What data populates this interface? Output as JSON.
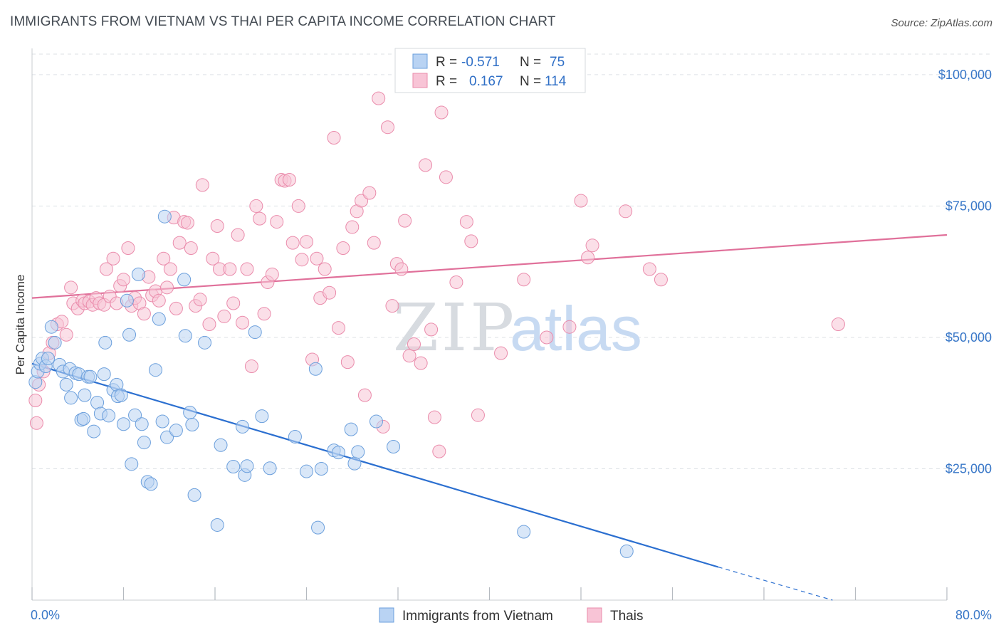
{
  "header": {
    "title": "IMMIGRANTS FROM VIETNAM VS THAI PER CAPITA INCOME CORRELATION CHART",
    "source": "Source: ZipAtlas.com"
  },
  "watermark": {
    "zip": "ZIP",
    "atlas": "atlas"
  },
  "colors": {
    "blue_fill": "#b9d3f3",
    "blue_stroke": "#6b9fdc",
    "blue_line": "#2b6fd0",
    "pink_fill": "#f8c4d6",
    "pink_stroke": "#ea8bab",
    "pink_line": "#e0709a",
    "grid": "#dde1e6",
    "tick_label": "#3a78c8"
  },
  "legend": {
    "rows": [
      {
        "r_label": "R =",
        "r_value": "-0.571",
        "n_label": "N =",
        "n_value": "75"
      },
      {
        "r_label": "R =",
        "r_value": "0.167",
        "n_label": "N =",
        "n_value": "114"
      }
    ]
  },
  "chart_data": {
    "type": "scatter",
    "title": "IMMIGRANTS FROM VIETNAM VS THAI PER CAPITA INCOME CORRELATION CHART",
    "xlabel": "",
    "ylabel": "Per Capita Income",
    "xlim": [
      0,
      80
    ],
    "ylim": [
      0,
      105000
    ],
    "x_tick_labels": [
      "0.0%",
      "80.0%"
    ],
    "y_ticks": [
      {
        "value": 25000,
        "label": "$25,000"
      },
      {
        "value": 50000,
        "label": "$50,000"
      },
      {
        "value": 75000,
        "label": "$75,000"
      },
      {
        "value": 100000,
        "label": "$100,000"
      }
    ],
    "grid": true,
    "legend_position": "top-center",
    "series": [
      {
        "name": "Immigrants from Vietnam",
        "r": -0.571,
        "n": 75,
        "trend": {
          "x": [
            0,
            60
          ],
          "y": [
            45000,
            6300
          ],
          "dashed_to": [
            70,
            0
          ]
        },
        "points": [
          [
            0.3,
            41500
          ],
          [
            0.5,
            43500
          ],
          [
            0.7,
            45000
          ],
          [
            0.9,
            46000
          ],
          [
            1.2,
            44500
          ],
          [
            1.4,
            46000
          ],
          [
            1.7,
            52000
          ],
          [
            2.0,
            49000
          ],
          [
            2.4,
            44800
          ],
          [
            2.7,
            43500
          ],
          [
            3.0,
            41000
          ],
          [
            3.3,
            44000
          ],
          [
            3.4,
            38500
          ],
          [
            3.8,
            43200
          ],
          [
            4.1,
            43000
          ],
          [
            4.3,
            34300
          ],
          [
            4.5,
            34500
          ],
          [
            4.6,
            39000
          ],
          [
            4.9,
            42500
          ],
          [
            5.1,
            42500
          ],
          [
            5.4,
            32100
          ],
          [
            5.7,
            37600
          ],
          [
            6.0,
            35500
          ],
          [
            6.3,
            43000
          ],
          [
            6.4,
            49000
          ],
          [
            6.7,
            35100
          ],
          [
            7.1,
            40000
          ],
          [
            7.4,
            41000
          ],
          [
            7.5,
            38800
          ],
          [
            7.8,
            39000
          ],
          [
            8.0,
            33500
          ],
          [
            8.3,
            57000
          ],
          [
            8.5,
            50500
          ],
          [
            8.7,
            25900
          ],
          [
            9.0,
            35200
          ],
          [
            9.3,
            62000
          ],
          [
            9.6,
            33500
          ],
          [
            9.8,
            30000
          ],
          [
            10.1,
            22500
          ],
          [
            10.4,
            22100
          ],
          [
            10.8,
            43800
          ],
          [
            11.1,
            53500
          ],
          [
            11.4,
            34000
          ],
          [
            11.6,
            73000
          ],
          [
            11.8,
            31000
          ],
          [
            12.6,
            32300
          ],
          [
            13.3,
            61000
          ],
          [
            13.4,
            50300
          ],
          [
            13.8,
            35700
          ],
          [
            14.0,
            33400
          ],
          [
            14.2,
            20000
          ],
          [
            15.1,
            49000
          ],
          [
            16.2,
            14300
          ],
          [
            16.5,
            29500
          ],
          [
            17.6,
            25400
          ],
          [
            18.4,
            33000
          ],
          [
            18.6,
            23800
          ],
          [
            18.8,
            25500
          ],
          [
            19.5,
            51000
          ],
          [
            20.1,
            35000
          ],
          [
            20.8,
            25100
          ],
          [
            23.0,
            31100
          ],
          [
            24.0,
            24500
          ],
          [
            24.8,
            44000
          ],
          [
            25.3,
            25000
          ],
          [
            26.4,
            28500
          ],
          [
            26.8,
            28100
          ],
          [
            27.9,
            32500
          ],
          [
            28.2,
            26000
          ],
          [
            28.5,
            28200
          ],
          [
            30.1,
            34000
          ],
          [
            31.6,
            29200
          ],
          [
            43.0,
            13000
          ],
          [
            52.0,
            9300
          ],
          [
            25.0,
            13800
          ]
        ]
      },
      {
        "name": "Thais",
        "r": 0.167,
        "n": 114,
        "trend": {
          "x": [
            0,
            80
          ],
          "y": [
            57500,
            69500
          ]
        },
        "points": [
          [
            0.3,
            38000
          ],
          [
            0.4,
            33700
          ],
          [
            0.6,
            41000
          ],
          [
            1.0,
            43500
          ],
          [
            1.5,
            47000
          ],
          [
            1.8,
            49000
          ],
          [
            2.2,
            52500
          ],
          [
            2.6,
            53000
          ],
          [
            3.0,
            50500
          ],
          [
            3.4,
            59500
          ],
          [
            3.6,
            56500
          ],
          [
            4.0,
            55500
          ],
          [
            4.4,
            57000
          ],
          [
            4.6,
            56500
          ],
          [
            5.0,
            56800
          ],
          [
            5.3,
            56200
          ],
          [
            5.6,
            57500
          ],
          [
            5.9,
            56500
          ],
          [
            6.3,
            56200
          ],
          [
            6.5,
            63000
          ],
          [
            6.8,
            57800
          ],
          [
            7.1,
            65000
          ],
          [
            7.4,
            56500
          ],
          [
            7.7,
            59800
          ],
          [
            8.0,
            61000
          ],
          [
            8.4,
            67000
          ],
          [
            8.7,
            56000
          ],
          [
            9.0,
            57500
          ],
          [
            9.4,
            56500
          ],
          [
            9.8,
            54500
          ],
          [
            10.2,
            61500
          ],
          [
            10.5,
            58000
          ],
          [
            10.8,
            58800
          ],
          [
            11.1,
            57000
          ],
          [
            11.5,
            65000
          ],
          [
            11.8,
            59500
          ],
          [
            12.1,
            63000
          ],
          [
            12.4,
            72800
          ],
          [
            12.6,
            55500
          ],
          [
            12.9,
            68000
          ],
          [
            13.3,
            72000
          ],
          [
            13.6,
            71800
          ],
          [
            13.9,
            67000
          ],
          [
            14.3,
            56000
          ],
          [
            14.7,
            57200
          ],
          [
            14.9,
            79000
          ],
          [
            15.5,
            52500
          ],
          [
            15.8,
            65000
          ],
          [
            16.2,
            71200
          ],
          [
            16.4,
            63000
          ],
          [
            16.8,
            54000
          ],
          [
            17.3,
            63000
          ],
          [
            17.6,
            56500
          ],
          [
            18.0,
            69500
          ],
          [
            18.4,
            52800
          ],
          [
            18.8,
            63000
          ],
          [
            19.2,
            44500
          ],
          [
            19.6,
            75000
          ],
          [
            19.9,
            72600
          ],
          [
            20.3,
            54500
          ],
          [
            20.6,
            60500
          ],
          [
            21.0,
            62000
          ],
          [
            21.4,
            72000
          ],
          [
            21.8,
            80000
          ],
          [
            22.1,
            79800
          ],
          [
            22.5,
            80000
          ],
          [
            22.8,
            68000
          ],
          [
            23.3,
            75000
          ],
          [
            23.6,
            64800
          ],
          [
            24.0,
            68200
          ],
          [
            24.5,
            45800
          ],
          [
            24.9,
            65000
          ],
          [
            25.2,
            57500
          ],
          [
            25.6,
            63000
          ],
          [
            26.0,
            58500
          ],
          [
            26.4,
            88000
          ],
          [
            26.8,
            51800
          ],
          [
            27.2,
            67000
          ],
          [
            27.6,
            45300
          ],
          [
            28.0,
            71000
          ],
          [
            28.4,
            74000
          ],
          [
            28.8,
            76000
          ],
          [
            29.1,
            39000
          ],
          [
            29.5,
            77500
          ],
          [
            29.9,
            68000
          ],
          [
            30.3,
            95500
          ],
          [
            30.7,
            33000
          ],
          [
            31.1,
            90000
          ],
          [
            31.5,
            56000
          ],
          [
            31.9,
            64000
          ],
          [
            32.3,
            63000
          ],
          [
            32.6,
            72200
          ],
          [
            33.0,
            46500
          ],
          [
            33.4,
            48700
          ],
          [
            34.0,
            45100
          ],
          [
            34.4,
            82800
          ],
          [
            34.9,
            51500
          ],
          [
            35.2,
            34800
          ],
          [
            35.6,
            28300
          ],
          [
            35.8,
            92800
          ],
          [
            36.2,
            80500
          ],
          [
            37.1,
            60500
          ],
          [
            38.0,
            72000
          ],
          [
            38.4,
            68300
          ],
          [
            39.0,
            35200
          ],
          [
            41.0,
            47000
          ],
          [
            43.0,
            61000
          ],
          [
            45.0,
            50000
          ],
          [
            47.0,
            52000
          ],
          [
            48.0,
            76000
          ],
          [
            49.0,
            67500
          ],
          [
            48.6,
            65200
          ],
          [
            51.9,
            74000
          ],
          [
            54.0,
            63000
          ],
          [
            55.0,
            61000
          ],
          [
            70.5,
            52500
          ]
        ]
      }
    ]
  }
}
